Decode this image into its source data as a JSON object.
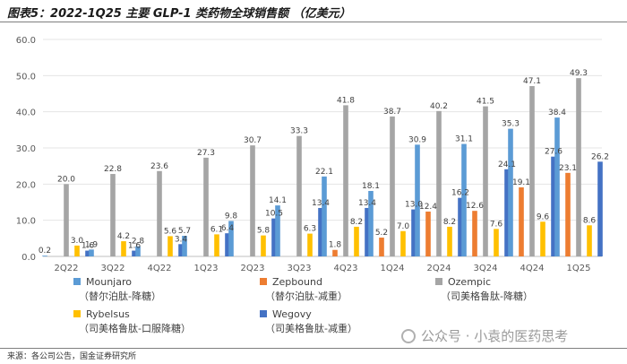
{
  "header": {
    "title": "图表5：2022-1Q25 主要 GLP-1 类药物全球销售额 （亿美元）"
  },
  "footer": {
    "source": "来源：各公司公告，国金证券研究所"
  },
  "watermark": {
    "text": "公众号 · 小袁的医药思考",
    "icon": "wechat-icon"
  },
  "chart_data": {
    "type": "bar",
    "title": "2022-1Q25 主要 GLP-1 类药物全球销售额 （亿美元）",
    "xlabel": "",
    "ylabel": "",
    "ylim": [
      0,
      60
    ],
    "yticks": [
      "0.0",
      "10.0",
      "20.0",
      "30.0",
      "40.0",
      "50.0",
      "60.0"
    ],
    "categories": [
      "2Q22",
      "3Q22",
      "4Q22",
      "1Q23",
      "2Q23",
      "3Q23",
      "4Q23",
      "1Q24",
      "2Q24",
      "3Q24",
      "4Q24",
      "1Q25"
    ],
    "series": [
      {
        "name": "Mounjaro",
        "sub": "（替尔泊肽-降糖）",
        "color": "#5b9bd5",
        "values": [
          0.2,
          1.9,
          2.8,
          5.7,
          9.8,
          14.1,
          22.1,
          18.1,
          30.9,
          31.1,
          35.3,
          38.4
        ]
      },
      {
        "name": "Zepbound",
        "sub": "（替尔泊肽-减重）",
        "color": "#ed7d31",
        "values": [
          null,
          null,
          null,
          null,
          null,
          null,
          1.8,
          5.2,
          12.4,
          12.6,
          19.1,
          23.1
        ]
      },
      {
        "name": "Ozempic",
        "sub": "（司美格鲁肽-降糖）",
        "color": "#a5a5a5",
        "values": [
          20.0,
          22.8,
          23.6,
          27.3,
          30.7,
          33.3,
          41.8,
          38.7,
          40.2,
          41.5,
          47.1,
          49.3
        ]
      },
      {
        "name": "Rybelsus",
        "sub": "（司美格鲁肽-口服降糖）",
        "color": "#ffc000",
        "values": [
          3.0,
          4.2,
          5.6,
          6.1,
          5.8,
          6.3,
          8.2,
          7.0,
          8.2,
          7.6,
          9.6,
          8.6
        ]
      },
      {
        "name": "Wegovy",
        "sub": "（司美格鲁肽-减重）",
        "color": "#4472c4",
        "values": [
          1.6,
          1.6,
          3.4,
          6.4,
          10.5,
          13.4,
          13.4,
          13.0,
          16.2,
          24.1,
          27.6,
          26.2
        ]
      }
    ]
  }
}
